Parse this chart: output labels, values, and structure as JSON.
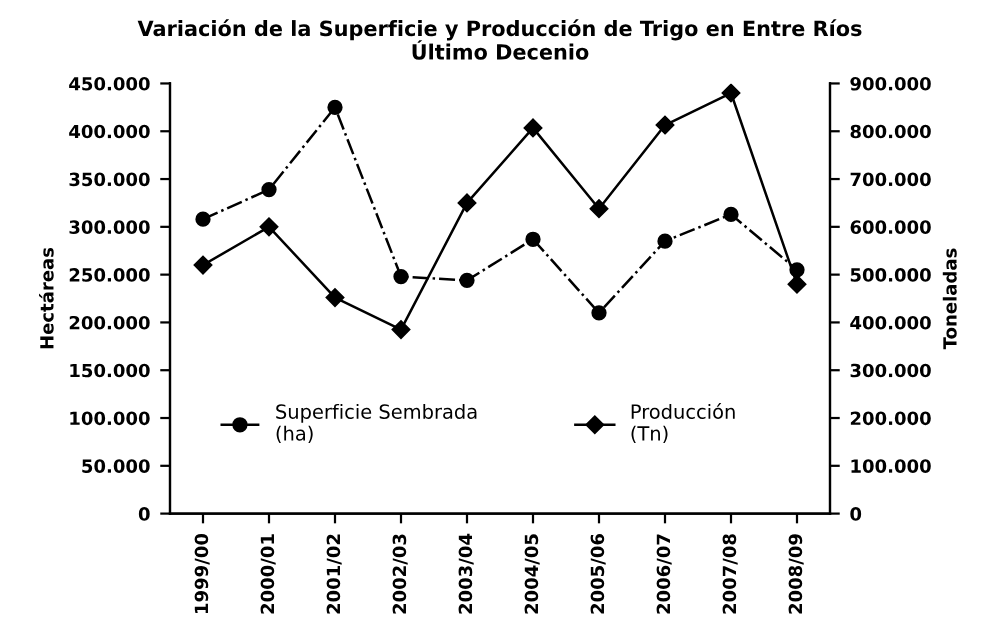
{
  "chart_data": {
    "type": "line",
    "title": "Variación de la Superficie y Producción de Trigo en Entre Ríos\nÚltimo Decenio",
    "ylabel": "Hectáreas",
    "y2label": "Toneladas",
    "categories": [
      "1999/00",
      "2000/01",
      "2001/02",
      "2002/03",
      "2003/04",
      "2004/05",
      "2005/06",
      "2006/07",
      "2007/08",
      "2008/09"
    ],
    "series": [
      {
        "name": "Superficie Sembrada\n(ha)",
        "color": "#000000",
        "marker": "circle",
        "line_style": "dashdot",
        "values": [
          308000,
          339000,
          425000,
          248000,
          244000,
          287000,
          210000,
          285000,
          313000,
          255000
        ]
      },
      {
        "name": "Producción\n(Tn)",
        "color": "#000000",
        "marker": "diamond",
        "line_style": "solid",
        "axis": "y2",
        "values": [
          520000,
          600000,
          452000,
          385000,
          650000,
          807000,
          638000,
          813000,
          880000,
          480000
        ]
      }
    ],
    "ylim": [
      0,
      450000
    ],
    "yticks": [
      0,
      {
        "value": 50000,
        "label": "50.000"
      },
      {
        "value": 100000,
        "label": "100.000"
      },
      {
        "value": 150000,
        "label": "150.000"
      },
      {
        "value": 200000,
        "label": "200.000"
      },
      {
        "value": 250000,
        "label": "250.000"
      },
      {
        "value": 300000,
        "label": "300.000"
      },
      {
        "value": 350000,
        "label": "350.000"
      },
      {
        "value": 400000,
        "label": "400.000"
      },
      {
        "value": 450000,
        "label": "450.000"
      }
    ],
    "y2lim": [
      0,
      900000
    ],
    "y2ticks": [
      0,
      {
        "value": 100000,
        "label": "100.000"
      },
      {
        "value": 200000,
        "label": "200.000"
      },
      {
        "value": 300000,
        "label": "300.000"
      },
      {
        "value": 400000,
        "label": "400.000"
      },
      {
        "value": 500000,
        "label": "500.000"
      },
      {
        "value": 600000,
        "label": "600.000"
      },
      {
        "value": 700000,
        "label": "700.000"
      },
      {
        "value": 800000,
        "label": "800.000"
      },
      {
        "value": 900000,
        "label": "900.000"
      }
    ],
    "grid": false,
    "legend": "bottom left"
  }
}
